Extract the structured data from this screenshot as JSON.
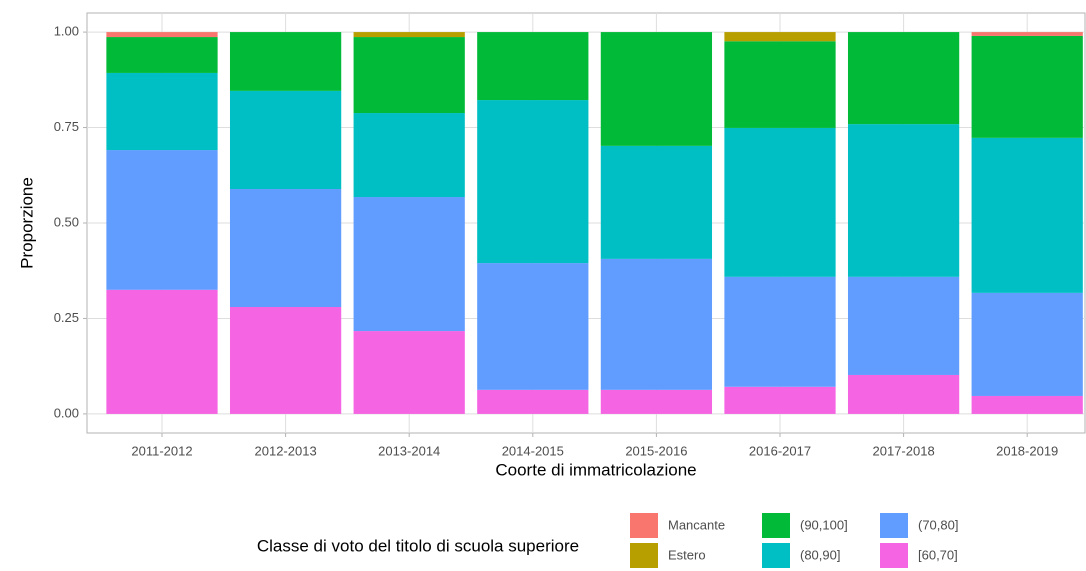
{
  "chart_data": {
    "type": "stacked_bar",
    "x_label": "Coorte di immatricolazione",
    "y_label": "Proporzione",
    "legend_title": "Classe di voto del titolo di scuola superiore",
    "categories": [
      "2011-2012",
      "2012-2013",
      "2013-2014",
      "2014-2015",
      "2015-2016",
      "2016-2017",
      "2017-2018",
      "2018-2019"
    ],
    "series": [
      {
        "name": "Mancante",
        "color": "#F8766D",
        "values": [
          0.013,
          0,
          0,
          0,
          0,
          0,
          0,
          0.01
        ]
      },
      {
        "name": "Estero",
        "color": "#B79F00",
        "values": [
          0,
          0,
          0.013,
          0,
          0,
          0.024,
          0,
          0
        ]
      },
      {
        "name": "(90,100]",
        "color": "#00BA38",
        "values": [
          0.094,
          0.154,
          0.199,
          0.178,
          0.298,
          0.227,
          0.241,
          0.267
        ]
      },
      {
        "name": "(80,90]",
        "color": "#00BFC4",
        "values": [
          0.202,
          0.257,
          0.22,
          0.427,
          0.296,
          0.39,
          0.4,
          0.406
        ]
      },
      {
        "name": "(70,80]",
        "color": "#619CFF",
        "values": [
          0.366,
          0.309,
          0.351,
          0.332,
          0.343,
          0.288,
          0.257,
          0.27
        ]
      },
      {
        "name": "[60,70]",
        "color": "#F564E3",
        "values": [
          0.325,
          0.28,
          0.217,
          0.063,
          0.063,
          0.071,
          0.102,
          0.047
        ]
      }
    ],
    "ylim": [
      -0.05,
      1.05
    ],
    "yticks": [
      {
        "value": 0,
        "label": "0.00"
      },
      {
        "value": 0.25,
        "label": "0.25"
      },
      {
        "value": 0.5,
        "label": "0.50"
      },
      {
        "value": 0.75,
        "label": "0.75"
      },
      {
        "value": 1,
        "label": "1.00"
      }
    ],
    "grid": true,
    "legend_position": "bottom"
  }
}
